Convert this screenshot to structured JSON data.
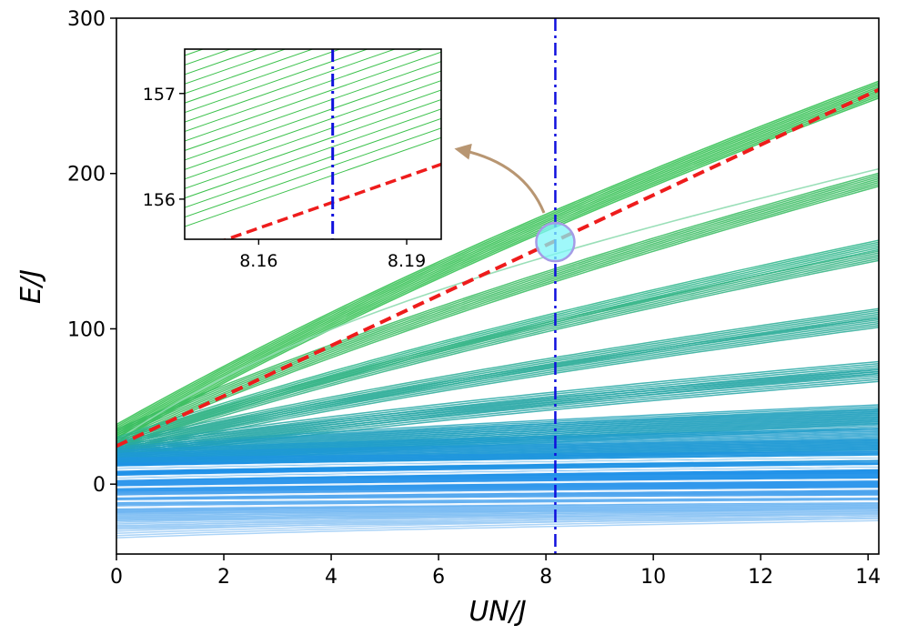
{
  "chart_data": {
    "type": "line",
    "xlabel": "UN/J",
    "ylabel": "E/J",
    "xlim": [
      0,
      14.2
    ],
    "ylim": [
      -45,
      300
    ],
    "x_ticks": [
      0,
      2,
      4,
      6,
      8,
      10,
      12,
      14
    ],
    "y_ticks": [
      0,
      100,
      200,
      300
    ],
    "x_tick_labels": [
      "0",
      "2",
      "4",
      "6",
      "8",
      "10",
      "12",
      "14"
    ],
    "y_tick_labels": [
      "0",
      "100",
      "200",
      "300"
    ],
    "marker_x": 8.175,
    "marker_y": 155.8,
    "bands": [
      {
        "name": "band-1",
        "start": 33,
        "end": 254,
        "curve": 1.2,
        "color": "#2fbf4f",
        "count": 10,
        "spread": 1.2,
        "opacity": 0.85,
        "width": 1.6
      },
      {
        "name": "band-2",
        "start": 31,
        "end": 196,
        "curve": 1.3,
        "color": "#35bb5e",
        "count": 8,
        "spread": 1.2,
        "opacity": 0.85,
        "width": 1.5
      },
      {
        "name": "band-3",
        "start": 28,
        "end": 203,
        "curve": 3.5,
        "color": "#8fdcb0",
        "count": 1,
        "spread": 0,
        "opacity": 0.9,
        "width": 1.6
      },
      {
        "name": "band-4",
        "start": 27,
        "end": 154,
        "curve": 1.4,
        "color": "#2ab58a",
        "count": 6,
        "spread": 1.2,
        "opacity": 0.85,
        "width": 1.5
      },
      {
        "name": "band-5",
        "start": 26,
        "end": 147,
        "curve": 1.4,
        "color": "#2fb280",
        "count": 6,
        "spread": 1.2,
        "opacity": 0.85,
        "width": 1.5
      },
      {
        "name": "band-6",
        "start": 24,
        "end": 110,
        "curve": 1.5,
        "color": "#2aad96",
        "count": 6,
        "spread": 1.2,
        "opacity": 0.85,
        "width": 1.5
      },
      {
        "name": "band-7",
        "start": 23,
        "end": 104,
        "curve": 1.5,
        "color": "#2aab98",
        "count": 6,
        "spread": 1.2,
        "opacity": 0.85,
        "width": 1.5
      },
      {
        "name": "band-8",
        "start": 21,
        "end": 75,
        "curve": 1.6,
        "color": "#27a8a4",
        "count": 7,
        "spread": 1.3,
        "opacity": 0.85,
        "width": 1.5
      },
      {
        "name": "band-9",
        "start": 20,
        "end": 70,
        "curve": 1.6,
        "color": "#27a6a6",
        "count": 7,
        "spread": 1.3,
        "opacity": 0.85,
        "width": 1.5
      },
      {
        "name": "band-10",
        "start": 18,
        "end": 45,
        "curve": 1.8,
        "color": "#22a2b8",
        "count": 12,
        "spread": 1.1,
        "opacity": 0.8,
        "width": 1.5
      },
      {
        "name": "band-11",
        "start": 17,
        "end": 42,
        "curve": 1.8,
        "color": "#209fbf",
        "count": 12,
        "spread": 1.1,
        "opacity": 0.8,
        "width": 1.5
      },
      {
        "name": "band-12",
        "start": 15,
        "end": 29,
        "curve": 2.0,
        "color": "#1e9ccc",
        "count": 16,
        "spread": 0.9,
        "opacity": 0.8,
        "width": 1.5
      },
      {
        "name": "band-13",
        "start": 13,
        "end": 22,
        "curve": 2.0,
        "color": "#1e98d6",
        "count": 16,
        "spread": 0.9,
        "opacity": 0.8,
        "width": 1.5
      },
      {
        "name": "band-14",
        "start": 10,
        "end": 14,
        "curve": 2.2,
        "color": "#1e95e0",
        "count": 16,
        "spread": 0.9,
        "opacity": 0.8,
        "width": 1.5
      },
      {
        "name": "band-15",
        "start": 6,
        "end": 6,
        "curve": 2.2,
        "color": "#1e92e6",
        "count": 20,
        "spread": 0.8,
        "opacity": 0.8,
        "width": 1.5
      },
      {
        "name": "band-16",
        "start": 2,
        "end": 1,
        "curve": 2.2,
        "color": "#2292ea",
        "count": 20,
        "spread": 0.8,
        "opacity": 0.8,
        "width": 1.5
      },
      {
        "name": "band-17",
        "start": -5,
        "end": -5,
        "curve": 2.2,
        "color": "#3398ec",
        "count": 20,
        "spread": 0.8,
        "opacity": 0.8,
        "width": 1.5
      },
      {
        "name": "band-18",
        "start": -12,
        "end": -10,
        "curve": 2.5,
        "color": "#55a8ef",
        "count": 16,
        "spread": 0.9,
        "opacity": 0.8,
        "width": 1.5
      },
      {
        "name": "band-19",
        "start": -18,
        "end": -14,
        "curve": 2.5,
        "color": "#6cb4f1",
        "count": 12,
        "spread": 1.0,
        "opacity": 0.8,
        "width": 1.5
      },
      {
        "name": "band-20",
        "start": -24,
        "end": -17,
        "curve": 2.5,
        "color": "#86c2f4",
        "count": 10,
        "spread": 1.1,
        "opacity": 0.8,
        "width": 1.5
      },
      {
        "name": "band-21",
        "start": -31,
        "end": -20,
        "curve": 2.5,
        "color": "#9dcdf6",
        "count": 6,
        "spread": 1.4,
        "opacity": 0.85,
        "width": 1.5
      }
    ],
    "white_gaps": [
      {
        "start": 10,
        "end": 17,
        "curve": 2.0,
        "count": 2,
        "spread": 1.5
      },
      {
        "start": 4,
        "end": 11,
        "curve": 2.0,
        "count": 2,
        "spread": 1.5
      },
      {
        "start": -2,
        "end": 3,
        "curve": 2.0,
        "count": 1,
        "spread": 0
      },
      {
        "start": -8,
        "end": -3,
        "curve": 2.0,
        "count": 1,
        "spread": 0
      },
      {
        "start": -11,
        "end": -8,
        "curve": 2.0,
        "count": 1,
        "spread": 0
      },
      {
        "start": -15,
        "end": -11,
        "curve": 2.0,
        "count": 1,
        "spread": 0
      }
    ],
    "red_dashed_line": {
      "x": [
        0,
        14.2
      ],
      "y": [
        24.5,
        254
      ],
      "color": "#ee1c1c"
    },
    "vertical_line": {
      "x": 8.175,
      "color": "#1010dd"
    },
    "inset": {
      "xlim": [
        8.145,
        8.197
      ],
      "ylim": [
        155.62,
        157.42
      ],
      "x_ticks": [
        8.16,
        8.19
      ],
      "y_ticks": [
        156,
        157
      ],
      "x_tick_labels": [
        "8.16",
        "8.19"
      ],
      "y_tick_labels": [
        "156",
        "157"
      ],
      "green_lines": {
        "count": 19,
        "base_at_left": 155.74,
        "spacing": 0.09,
        "slope": 16.2,
        "color": "#3ec24e"
      },
      "red_dashed_line": {
        "x": [
          8.145,
          8.197
        ],
        "y": [
          155.48,
          156.33
        ]
      },
      "vertical_line_x": 8.175
    }
  }
}
